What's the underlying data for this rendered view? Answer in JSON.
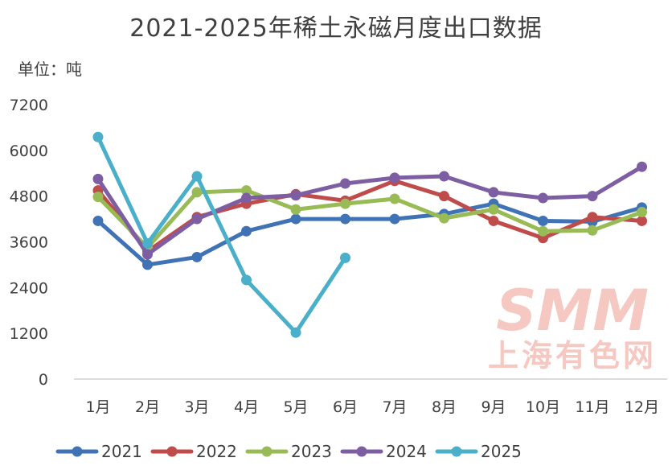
{
  "watermark": {
    "en": "SMM",
    "cn": "上海有色网"
  },
  "chart_data": {
    "type": "line",
    "title": "2021-2025年稀土永磁月度出口数据",
    "unit_label": "单位：吨",
    "xlabel": "",
    "ylabel": "",
    "ylim": [
      0,
      7200
    ],
    "yticks": [
      0,
      1200,
      2400,
      3600,
      4800,
      6000,
      7200
    ],
    "ytick_labels": [
      "0",
      "1200",
      "2400",
      "3600",
      "4800",
      "6000",
      "7200"
    ],
    "grid": false,
    "legend_position": "bottom",
    "categories": [
      "1月",
      "2月",
      "3月",
      "4月",
      "5月",
      "6月",
      "7月",
      "8月",
      "9月",
      "10月",
      "11月",
      "12月"
    ],
    "series": [
      {
        "name": "2021",
        "color": "#3f73b5",
        "values": [
          4150,
          3000,
          3200,
          3880,
          4200,
          4200,
          4200,
          4330,
          4600,
          4150,
          4130,
          4500
        ]
      },
      {
        "name": "2022",
        "color": "#bf4b4b",
        "values": [
          4950,
          3350,
          4250,
          4600,
          4850,
          4680,
          5200,
          4800,
          4150,
          3700,
          4250,
          4150
        ]
      },
      {
        "name": "2023",
        "color": "#98bb56",
        "values": [
          4780,
          3450,
          4900,
          4950,
          4450,
          4600,
          4730,
          4220,
          4450,
          3880,
          3900,
          4380
        ]
      },
      {
        "name": "2024",
        "color": "#7e5ea3",
        "values": [
          5250,
          3270,
          4200,
          4750,
          4820,
          5130,
          5280,
          5320,
          4900,
          4750,
          4800,
          5570
        ]
      },
      {
        "name": "2025",
        "color": "#4aafc8",
        "values": [
          6350,
          3560,
          5320,
          2600,
          1220,
          3180,
          null,
          null,
          null,
          null,
          null,
          null
        ]
      }
    ]
  }
}
